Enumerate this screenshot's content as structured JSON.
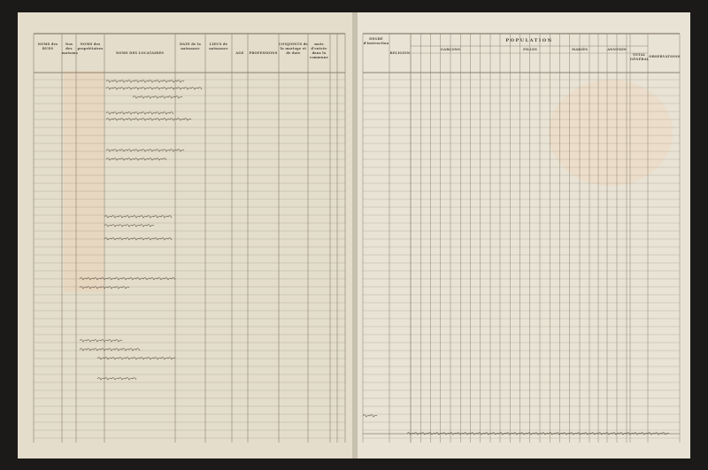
{
  "left_page": {
    "headers": {
      "rues": "NOMS des RUES",
      "maisons": "Nos des maisons",
      "proprietaires": "NOMS des propriétaires",
      "locataires": "NOMS DES LOCATAIRES",
      "date": "DATE de la naissance",
      "lieux": "LIEUX de naissance",
      "age": "AGE",
      "professions": "PROFESSIONS",
      "conjoints": "CONJOINTS de la mariage et de date",
      "entree": "mois d'entrée dans la commune"
    }
  },
  "right_page": {
    "headers": {
      "degre": "DEGRÉ d'instruction",
      "religion": "RELIGION",
      "population": "POPULATION",
      "garcons": "GARÇONS",
      "filles": "FILLES",
      "maries": "MARIÉS",
      "annexes": "ANNEXES",
      "total": "TOTAL GÉNÉRAL",
      "observations": "OBSERVATIONS"
    }
  },
  "colors": {
    "paper": "#e6e0d0",
    "ink": "#5a5040",
    "background": "#1b1a18",
    "stain": "#e8c9a8"
  }
}
